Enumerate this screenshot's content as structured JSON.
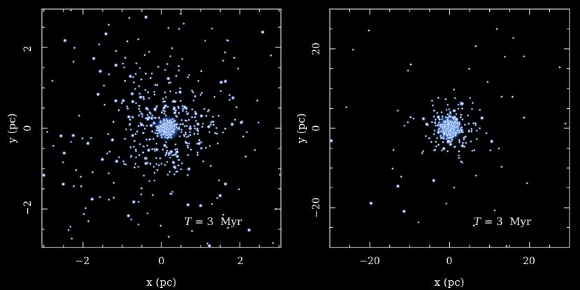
{
  "chart_data": [
    {
      "type": "scatter",
      "xlabel": "x (pc)",
      "ylabel": "y (pc)",
      "xlim": [
        -3.05,
        3.05
      ],
      "ylim": [
        -2.95,
        2.95
      ],
      "xticks": [
        -2,
        0,
        2
      ],
      "yticks": [
        -2,
        0,
        2
      ],
      "xtick_labels": [
        "−2",
        "0",
        "2"
      ],
      "ytick_labels": [
        "−2",
        "0",
        "2"
      ],
      "annotation": {
        "T": "T",
        "rest": " = 3  Myr"
      },
      "grid": false,
      "series": [
        {
          "values": []
        }
      ]
    },
    {
      "type": "scatter",
      "xlabel": "x (pc)",
      "ylabel": "y (pc)",
      "xlim": [
        -30,
        30
      ],
      "ylim": [
        -30,
        30
      ],
      "xticks": [
        -20,
        0,
        20
      ],
      "yticks": [
        -20,
        0,
        20
      ],
      "xtick_labels": [
        "−20",
        "0",
        "20"
      ],
      "ytick_labels": [
        "−20",
        "0",
        "20"
      ],
      "annotation": {
        "T": "T",
        "rest": " = 3  Myr"
      },
      "grid": false,
      "series": [
        {
          "values": []
        }
      ]
    }
  ],
  "colors": {
    "background": "#000000",
    "axes": "#ffffff",
    "star_core": "#ffffff",
    "star_glow": "#6fa8ff"
  }
}
